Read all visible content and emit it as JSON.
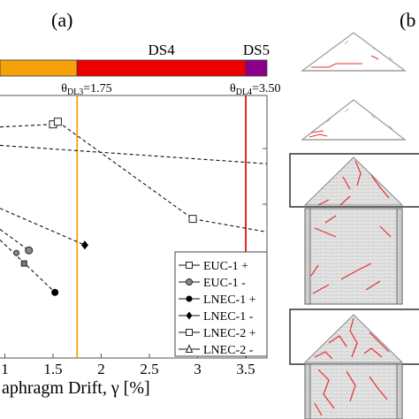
{
  "panel_labels": {
    "a": "(a)",
    "b": "(b"
  },
  "chart_data": {
    "type": "line",
    "title": "",
    "xlabel": "aphragm Drift, γ [%]",
    "ylabel": "",
    "xlim": [
      0.95,
      3.72
    ],
    "ylim": [
      0,
      1
    ],
    "x_ticks": [
      "1",
      "1.5",
      "2",
      "2.5",
      "3",
      "3.5"
    ],
    "grid": false,
    "legend_position": "bottom-right",
    "damage_states": [
      {
        "label": "",
        "x_start": 0.95,
        "x_end": 1.75,
        "color": "#f5a20a"
      },
      {
        "label": "DS4",
        "x_start": 1.75,
        "x_end": 3.5,
        "color": "#ee0000"
      },
      {
        "label": "DS5",
        "x_start": 3.5,
        "x_end": 3.72,
        "color": "#8b008b"
      }
    ],
    "thresholds": [
      {
        "prefix": "θ",
        "sub": "DL3",
        "value_text": "=1.75",
        "x": 1.75,
        "color": "#f5a20a"
      },
      {
        "prefix": "θ",
        "sub": "DL4",
        "value_text": "=3.50",
        "x": 3.5,
        "color": "#e01010"
      }
    ],
    "series": [
      {
        "name": "EUC-1 +",
        "marker": "square-open",
        "points": [
          [
            0.95,
            0.88
          ],
          [
            1.5,
            0.89
          ]
        ]
      },
      {
        "name": "EUC-1 -",
        "marker": "circle-gray",
        "points": [
          [
            0.95,
            0.49
          ],
          [
            1.25,
            0.41
          ]
        ]
      },
      {
        "name": "LNEC-1 +",
        "marker": "circle-filled",
        "points": [
          [
            0.95,
            0.45
          ],
          [
            1.52,
            0.25
          ]
        ]
      },
      {
        "name": "LNEC-1 -",
        "marker": "diamond-filled",
        "points": [
          [
            0.95,
            0.57
          ],
          [
            1.83,
            0.43
          ]
        ]
      },
      {
        "name": "LNEC-2 +",
        "marker": "square-open",
        "points": [
          [
            1.55,
            0.9
          ],
          [
            2.95,
            0.53
          ],
          [
            3.72,
            0.48
          ]
        ]
      },
      {
        "name": "LNEC-2 -",
        "marker": "triangle-open",
        "points": [
          [
            0.95,
            0.81
          ],
          [
            3.72,
            0.74
          ]
        ]
      }
    ],
    "extra_markers": [
      {
        "shape": "circle-gray",
        "x": 1.12,
        "y": 0.4
      },
      {
        "shape": "square-gray",
        "x": 1.2,
        "y": 0.36
      }
    ]
  },
  "diagrams": [
    {
      "name": "roof-outline-1"
    },
    {
      "name": "roof-outline-2"
    },
    {
      "name": "building-elevation-1"
    },
    {
      "name": "building-elevation-2"
    }
  ]
}
